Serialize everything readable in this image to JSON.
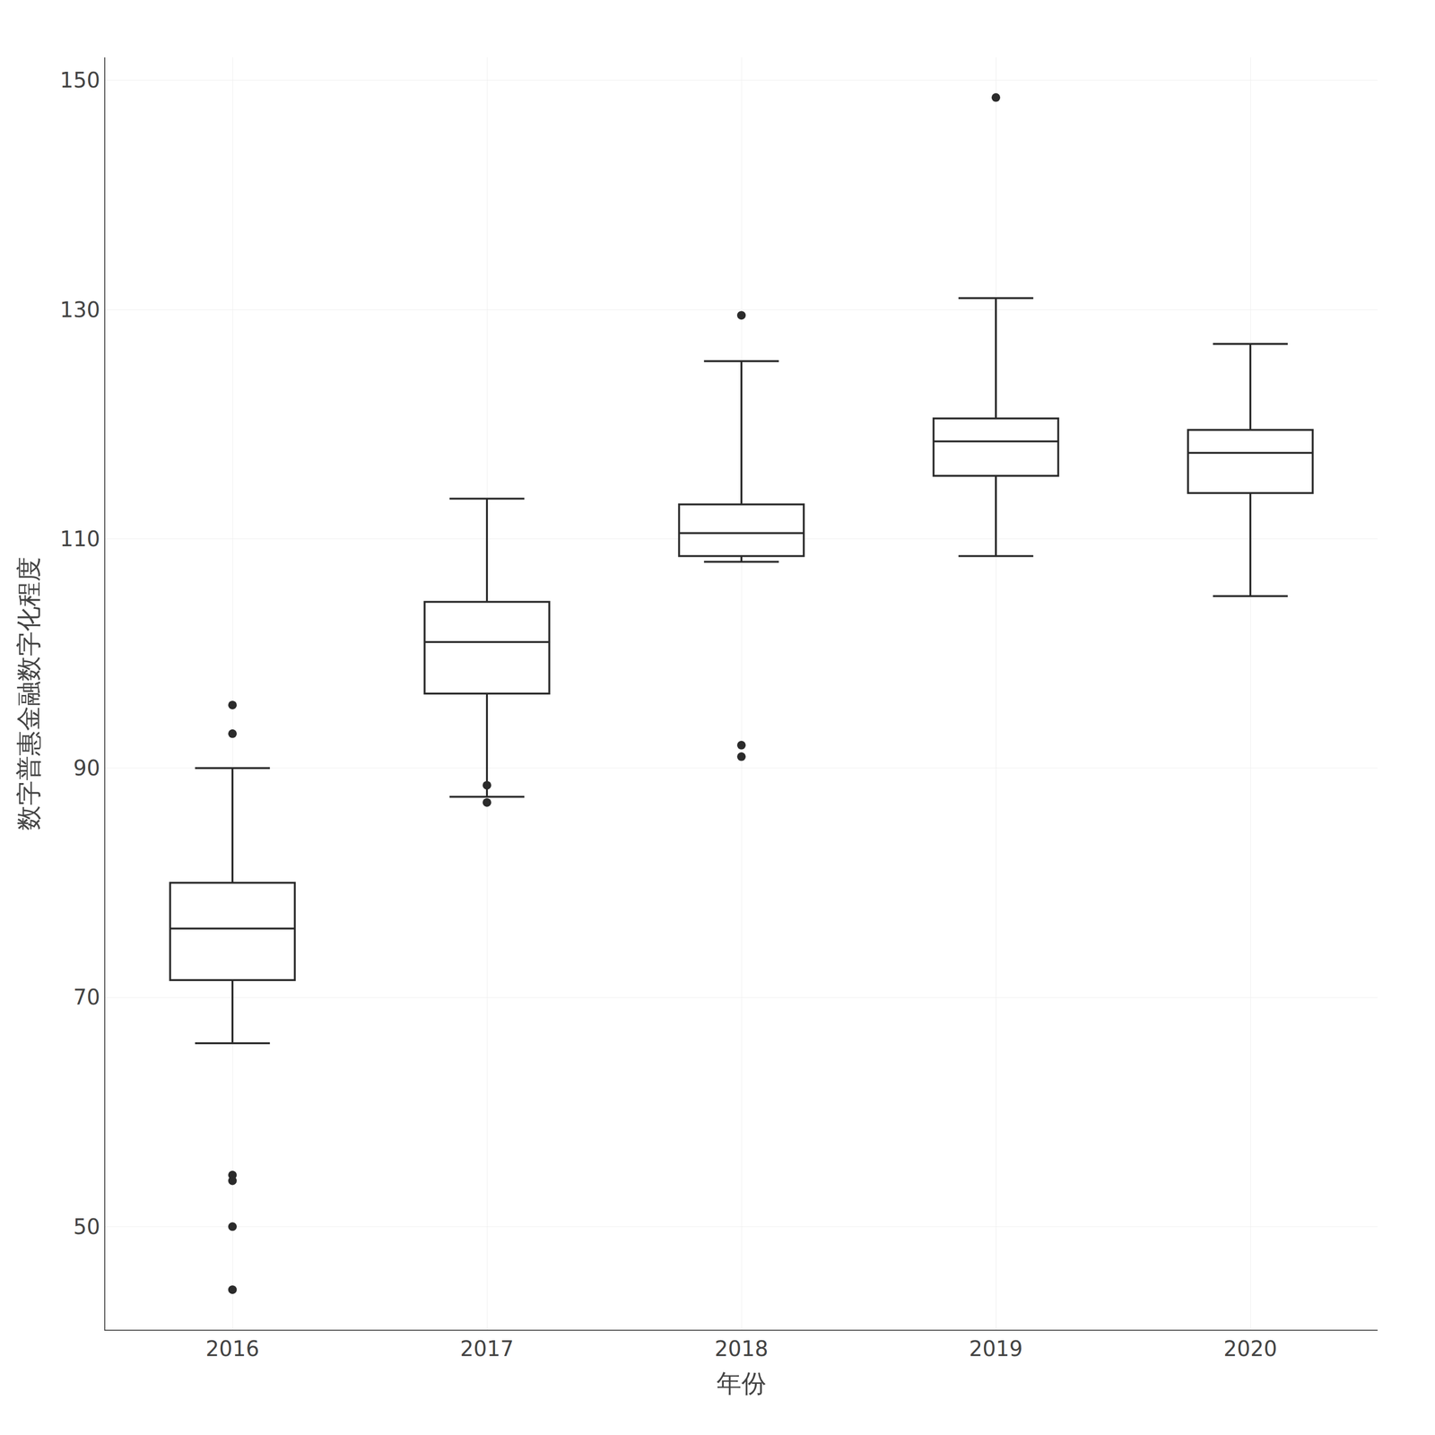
{
  "chart_data": {
    "type": "box",
    "categories": [
      "2016",
      "2017",
      "2018",
      "2019",
      "2020"
    ],
    "boxes": [
      {
        "whislo": 66.0,
        "q1": 71.5,
        "med": 76.0,
        "q3": 80.0,
        "whishi": 90.0,
        "fliers": [
          95.5,
          93.0,
          54.0,
          54.5,
          50.0,
          44.5
        ]
      },
      {
        "whislo": 87.5,
        "q1": 96.5,
        "med": 101.0,
        "q3": 104.5,
        "whishi": 113.5,
        "fliers": [
          88.5,
          87.0
        ]
      },
      {
        "whislo": 108.0,
        "q1": 108.5,
        "med": 110.5,
        "q3": 113.0,
        "whishi": 125.5,
        "fliers": [
          129.5,
          92.0,
          91.0
        ]
      },
      {
        "whislo": 108.5,
        "q1": 115.5,
        "med": 118.5,
        "q3": 120.5,
        "whishi": 131.0,
        "fliers": [
          148.5
        ]
      },
      {
        "whislo": 105.0,
        "q1": 114.0,
        "med": 117.5,
        "q3": 119.5,
        "whishi": 127.0,
        "fliers": []
      }
    ],
    "xlabel": "年份",
    "ylabel": "数字普惠金融数字化程度",
    "ylim": [
      41,
      152
    ],
    "yticks": [
      50,
      70,
      90,
      110,
      130,
      150
    ],
    "grid": true,
    "color": "#2b2b2b"
  }
}
